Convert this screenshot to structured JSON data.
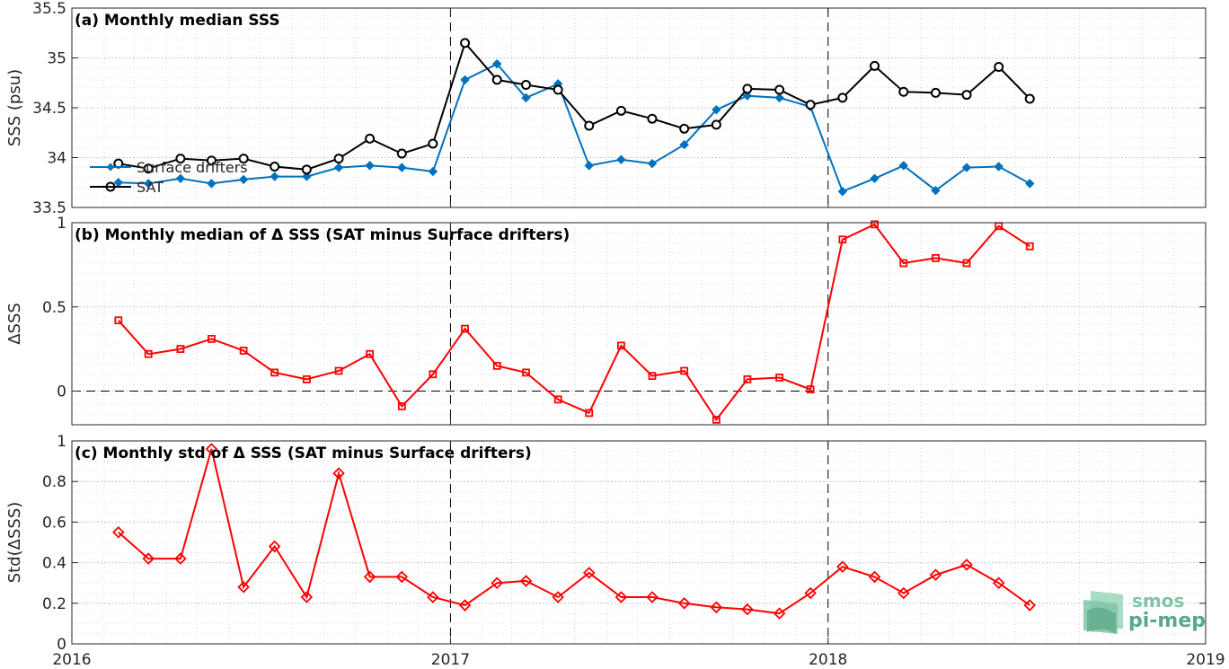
{
  "logo": {
    "line1": "smos",
    "line2": "pi-mep"
  },
  "x_ticks": [
    "2016",
    "2017",
    "2018",
    "2019"
  ],
  "year_markers": [
    "2017",
    "2018"
  ],
  "chart_data": [
    {
      "type": "line",
      "title": "(a) Monthly median SSS",
      "ylabel": "SSS (psu)",
      "ylim": [
        33.5,
        35.5
      ],
      "yticks": [
        33.5,
        34,
        34.5,
        35,
        35.5
      ],
      "y_tick_labels": [
        "33.5",
        "34",
        "34.5",
        "35",
        "35.5"
      ],
      "xlim": [
        "2016-01-01",
        "2019-01-01"
      ],
      "grid": true,
      "legend_position": "bottom-left",
      "x": [
        "2016-02-15",
        "2016-03-15",
        "2016-04-15",
        "2016-05-15",
        "2016-06-15",
        "2016-07-15",
        "2016-08-15",
        "2016-09-15",
        "2016-10-15",
        "2016-11-15",
        "2016-12-15",
        "2017-01-15",
        "2017-02-15",
        "2017-03-15",
        "2017-04-15",
        "2017-05-15",
        "2017-06-15",
        "2017-07-15",
        "2017-08-15",
        "2017-09-15",
        "2017-10-15",
        "2017-11-15",
        "2017-12-15",
        "2018-01-15",
        "2018-02-15",
        "2018-03-15",
        "2018-04-15",
        "2018-05-15",
        "2018-06-15",
        "2018-07-15"
      ],
      "series": [
        {
          "name": "Surface drifters",
          "color": "#0072bd",
          "marker": "diamond",
          "values": [
            33.75,
            33.74,
            33.79,
            33.74,
            33.78,
            33.81,
            33.81,
            33.9,
            33.92,
            33.9,
            33.86,
            34.78,
            34.94,
            34.6,
            34.74,
            33.92,
            33.98,
            33.94,
            34.13,
            34.48,
            34.62,
            34.6,
            34.51,
            33.66,
            33.79,
            33.92,
            33.67,
            33.9,
            33.91,
            33.74
          ]
        },
        {
          "name": "SAT",
          "color": "#000000",
          "marker": "circle",
          "values": [
            33.94,
            33.89,
            33.99,
            33.97,
            33.99,
            33.91,
            33.88,
            33.99,
            34.19,
            34.04,
            34.14,
            35.15,
            34.78,
            34.73,
            34.68,
            34.32,
            34.47,
            34.39,
            34.29,
            34.33,
            34.69,
            34.68,
            34.53,
            34.6,
            34.92,
            34.66,
            34.65,
            34.63,
            34.91,
            34.59
          ]
        }
      ]
    },
    {
      "type": "line",
      "title": "(b) Monthly median of Δ SSS (SAT minus Surface drifters)",
      "ylabel": "ΔSSS",
      "ylim": [
        -0.2,
        1
      ],
      "yticks": [
        0,
        0.5,
        1
      ],
      "y_tick_labels": [
        "0",
        "0.5",
        "1"
      ],
      "xlim": [
        "2016-01-01",
        "2019-01-01"
      ],
      "grid": true,
      "zero_line": true,
      "x": [
        "2016-02-15",
        "2016-03-15",
        "2016-04-15",
        "2016-05-15",
        "2016-06-15",
        "2016-07-15",
        "2016-08-15",
        "2016-09-15",
        "2016-10-15",
        "2016-11-15",
        "2016-12-15",
        "2017-01-15",
        "2017-02-15",
        "2017-03-15",
        "2017-04-15",
        "2017-05-15",
        "2017-06-15",
        "2017-07-15",
        "2017-08-15",
        "2017-09-15",
        "2017-10-15",
        "2017-11-15",
        "2017-12-15",
        "2018-01-15",
        "2018-02-15",
        "2018-03-15",
        "2018-04-15",
        "2018-05-15",
        "2018-06-15",
        "2018-07-15"
      ],
      "series": [
        {
          "color": "#ff0000",
          "marker": "square",
          "values": [
            0.42,
            0.22,
            0.25,
            0.31,
            0.24,
            0.11,
            0.07,
            0.12,
            0.22,
            -0.09,
            0.1,
            0.37,
            0.15,
            0.11,
            -0.05,
            -0.13,
            0.27,
            0.09,
            0.12,
            -0.17,
            0.07,
            0.08,
            0.01,
            0.9,
            0.99,
            0.76,
            0.79,
            0.76,
            0.98,
            0.86
          ]
        }
      ]
    },
    {
      "type": "line",
      "title": "(c) Monthly std of Δ SSS (SAT minus Surface drifters)",
      "ylabel": "Std(ΔSSS)",
      "ylim": [
        0,
        1
      ],
      "yticks": [
        0,
        0.2,
        0.4,
        0.6,
        0.8,
        1
      ],
      "y_tick_labels": [
        "0",
        "0.2",
        "0.4",
        "0.6",
        "0.8",
        "1"
      ],
      "xlim": [
        "2016-01-01",
        "2019-01-01"
      ],
      "grid": true,
      "x": [
        "2016-02-15",
        "2016-03-15",
        "2016-04-15",
        "2016-05-15",
        "2016-06-15",
        "2016-07-15",
        "2016-08-15",
        "2016-09-15",
        "2016-10-15",
        "2016-11-15",
        "2016-12-15",
        "2017-01-15",
        "2017-02-15",
        "2017-03-15",
        "2017-04-15",
        "2017-05-15",
        "2017-06-15",
        "2017-07-15",
        "2017-08-15",
        "2017-09-15",
        "2017-10-15",
        "2017-11-15",
        "2017-12-15",
        "2018-01-15",
        "2018-02-15",
        "2018-03-15",
        "2018-04-15",
        "2018-05-15",
        "2018-06-15",
        "2018-07-15"
      ],
      "series": [
        {
          "color": "#ff0000",
          "marker": "diamond",
          "values": [
            0.55,
            0.42,
            0.42,
            0.96,
            0.28,
            0.48,
            0.23,
            0.84,
            0.33,
            0.33,
            0.23,
            0.19,
            0.3,
            0.31,
            0.23,
            0.35,
            0.23,
            0.23,
            0.2,
            0.18,
            0.17,
            0.15,
            0.25,
            0.38,
            0.33,
            0.25,
            0.34,
            0.39,
            0.3,
            0.19
          ]
        }
      ]
    }
  ]
}
